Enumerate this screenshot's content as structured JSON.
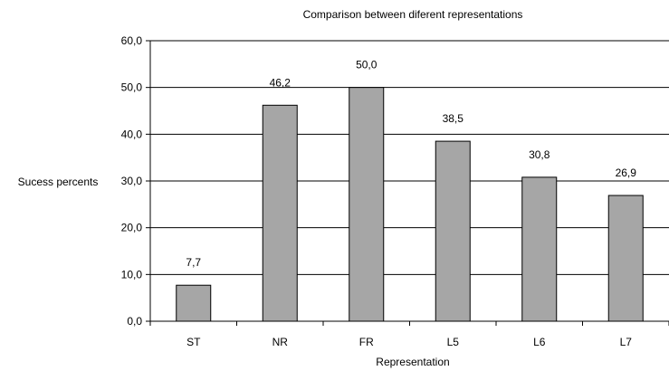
{
  "chart_data": {
    "type": "bar",
    "title": "Comparison between diferent representations",
    "xlabel": "Representation",
    "ylabel": "Sucess percents",
    "categories": [
      "ST",
      "NR",
      "FR",
      "L5",
      "L6",
      "L7"
    ],
    "values": [
      7.7,
      46.2,
      50.0,
      38.5,
      30.8,
      26.9
    ],
    "value_labels": [
      "7,7",
      "46,2",
      "50,0",
      "38,5",
      "30,8",
      "26,9"
    ],
    "y_ticks": [
      0,
      10,
      20,
      30,
      40,
      50,
      60
    ],
    "y_tick_labels": [
      "0,0",
      "10,0",
      "20,0",
      "30,0",
      "40,0",
      "50,0",
      "60,0"
    ],
    "ylim": [
      0,
      60
    ],
    "grid": true,
    "legend": "none",
    "colors": {
      "bar_fill": "#a6a6a6",
      "bar_stroke": "#000000",
      "grid": "#000000",
      "background": "#ffffff"
    }
  }
}
